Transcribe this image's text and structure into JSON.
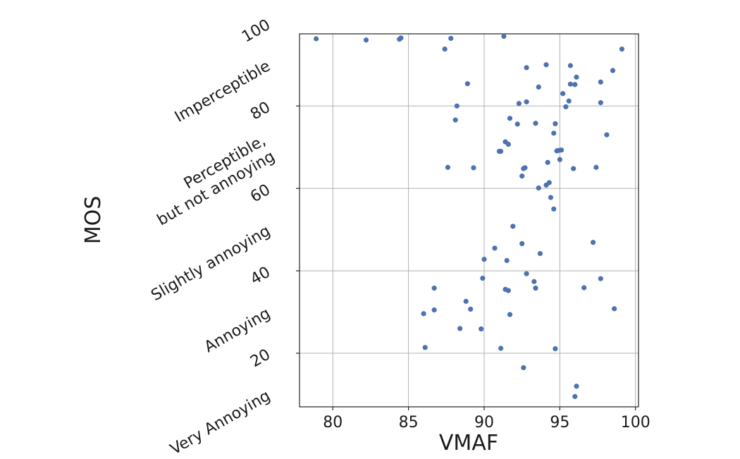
{
  "chart_data": {
    "type": "scatter",
    "title": "",
    "xlabel": "VMAF",
    "ylabel": "MOS",
    "xlim": [
      77.8,
      100.2
    ],
    "ylim": [
      7,
      97.5
    ],
    "grid": true,
    "marker_color": "#4c72b0",
    "x_ticks": [
      {
        "value": 80,
        "label": "80"
      },
      {
        "value": 85,
        "label": "85"
      },
      {
        "value": 90,
        "label": "90"
      },
      {
        "value": 95,
        "label": "95"
      },
      {
        "value": 100,
        "label": "100"
      }
    ],
    "y_ticks": [
      {
        "value": 100,
        "label": "100"
      },
      {
        "value": 90,
        "label": "Imperceptible"
      },
      {
        "value": 80,
        "label": "80"
      },
      {
        "value": 70,
        "label": "Perceptible,\nbut not annoying"
      },
      {
        "value": 60,
        "label": "60"
      },
      {
        "value": 50,
        "label": "Slightly annoying"
      },
      {
        "value": 40,
        "label": "40"
      },
      {
        "value": 30,
        "label": "Annoying"
      },
      {
        "value": 20,
        "label": "20"
      },
      {
        "value": 10,
        "label": "Very Annoying"
      }
    ],
    "y_gridlines": [
      20,
      40,
      60,
      80
    ],
    "x": [
      78.9,
      82.2,
      84.4,
      84.5,
      87.8,
      87.4,
      91.3,
      99.1,
      94.1,
      92.8,
      95.7,
      98.5,
      96.1,
      97.7,
      88.9,
      93.6,
      96.0,
      95.7,
      95.2,
      92.8,
      92.3,
      95.6,
      88.2,
      95.4,
      97.7,
      88.1,
      91.7,
      92.2,
      94.7,
      93.4,
      98.1,
      94.6,
      91.4,
      91.6,
      91.0,
      91.1,
      95.1,
      94.8,
      94.9,
      95.0,
      94.2,
      92.7,
      92.6,
      97.4,
      87.6,
      89.3,
      95.9,
      92.5,
      94.3,
      94.1,
      93.6,
      94.4,
      94.6,
      91.9,
      97.2,
      92.5,
      90.7,
      93.7,
      91.5,
      90.0,
      92.8,
      97.7,
      89.9,
      93.3,
      86.7,
      96.6,
      93.4,
      91.4,
      91.6,
      88.8,
      86.7,
      89.1,
      98.6,
      86.0,
      91.7,
      88.4,
      89.8,
      86.1,
      91.1,
      94.7,
      92.6,
      96.1,
      96.0
    ],
    "y": [
      96.3,
      96.0,
      96.2,
      96.5,
      96.4,
      93.8,
      96.9,
      93.8,
      90.0,
      89.3,
      89.8,
      88.6,
      87.0,
      85.8,
      85.4,
      84.6,
      85.2,
      85.3,
      83.0,
      81.0,
      80.6,
      81.2,
      80.0,
      79.8,
      80.8,
      76.6,
      77.0,
      75.6,
      75.7,
      75.8,
      73.0,
      73.4,
      71.3,
      70.7,
      69.0,
      69.0,
      69.3,
      69.1,
      69.2,
      67.0,
      66.3,
      65.0,
      64.8,
      65.1,
      65.1,
      65.0,
      64.8,
      63.0,
      61.4,
      60.8,
      60.1,
      57.8,
      55.0,
      50.8,
      46.9,
      46.6,
      45.5,
      44.2,
      42.5,
      42.8,
      39.3,
      38.1,
      38.2,
      37.4,
      35.8,
      35.9,
      35.8,
      35.5,
      35.2,
      32.6,
      30.5,
      30.7,
      30.8,
      29.6,
      29.4,
      26.0,
      25.9,
      21.4,
      21.2,
      21.1,
      16.5,
      12.0,
      9.5
    ]
  }
}
